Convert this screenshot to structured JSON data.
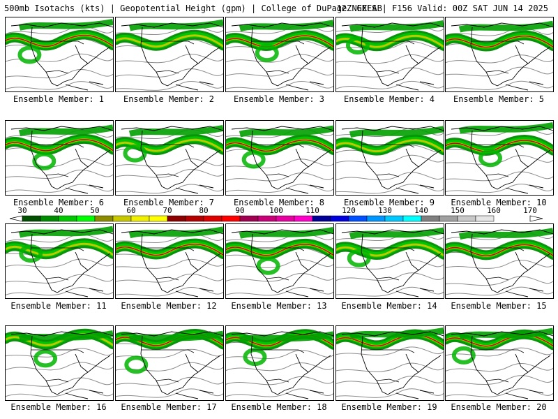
{
  "header": {
    "left": "500mb Isotachs (kts) | Geopotential Height (gpm) | College of DuPage NEXLAB",
    "right": "12Z GEFS | F156 Valid: 00Z SAT JUN 14 2025"
  },
  "members": [
    "Ensemble Member: 1",
    "Ensemble Member: 2",
    "Ensemble Member: 3",
    "Ensemble Member: 4",
    "Ensemble Member: 5",
    "Ensemble Member: 6",
    "Ensemble Member: 7",
    "Ensemble Member: 8",
    "Ensemble Member: 9",
    "Ensemble Member: 10",
    "Ensemble Member: 11",
    "Ensemble Member: 12",
    "Ensemble Member: 13",
    "Ensemble Member: 14",
    "Ensemble Member: 15",
    "Ensemble Member: 16",
    "Ensemble Member: 17",
    "Ensemble Member: 18",
    "Ensemble Member: 19",
    "Ensemble Member: 20"
  ],
  "color_scale": {
    "labels": [
      "30",
      "40",
      "50",
      "60",
      "70",
      "80",
      "90",
      "100",
      "110",
      "120",
      "130",
      "140",
      "150",
      "160",
      "170"
    ],
    "label_values": [
      30,
      40,
      50,
      60,
      70,
      80,
      90,
      100,
      110,
      120,
      130,
      140,
      150,
      160,
      170
    ],
    "min": 30,
    "max": 170,
    "step": 5,
    "colors": [
      "#005000",
      "#008c00",
      "#00c800",
      "#00ff00",
      "#8c8c00",
      "#c8c800",
      "#f0f000",
      "#ffff00",
      "#8c0000",
      "#b40000",
      "#dc0000",
      "#ff0000",
      "#a00050",
      "#c80078",
      "#e600a0",
      "#ff00c8",
      "#000096",
      "#0000dc",
      "#0050ff",
      "#0096ff",
      "#00c8ff",
      "#00ffff",
      "#808080",
      "#a0a0a0",
      "#c8c8c8",
      "#e6e6e6"
    ]
  }
}
